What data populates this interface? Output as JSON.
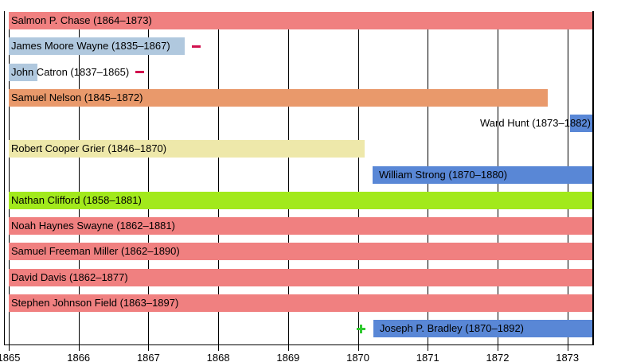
{
  "chart_data": {
    "type": "bar",
    "variant": "horizontal-timeline-gantt",
    "title": "",
    "xlabel": "",
    "ylabel": "",
    "grid": true,
    "legend": false,
    "x_axis": {
      "min": 1865,
      "max": 1873.37,
      "ticks": [
        1865,
        1866,
        1867,
        1868,
        1869,
        1870,
        1871,
        1872,
        1873
      ],
      "tick_labels": [
        "1865",
        "1866",
        "1867",
        "1868",
        "1869",
        "1870",
        "1871",
        "1872",
        "1873"
      ]
    },
    "rows": [
      {
        "label": "Salmon P. Chase (1864–1873)",
        "bar_start": 1865,
        "bar_end": 1873.37,
        "color": "#F08080",
        "label_pos": "inside-start"
      },
      {
        "label": "James Moore Wayne (1835–1867)",
        "bar_start": 1865,
        "bar_end": 1867.52,
        "color": "#B0C8DE",
        "label_pos": "inside-start",
        "marker": {
          "type": "dash",
          "x": 1867.69,
          "color": "#D1114E"
        }
      },
      {
        "label": "John Catron (1837–1865)",
        "bar_start": 1865,
        "bar_end": 1865.41,
        "color": "#B0C8DE",
        "label_pos": "inside-start",
        "marker": {
          "type": "dash",
          "x": 1866.87,
          "color": "#D1114E"
        }
      },
      {
        "label": "Samuel Nelson (1845–1872)",
        "bar_start": 1865,
        "bar_end": 1872.72,
        "color": "#E9996B",
        "label_pos": "inside-start"
      },
      {
        "label": "Ward Hunt (1873–1882)",
        "bar_start": 1873.04,
        "bar_end": 1873.37,
        "color": "#5987D6",
        "label_pos": "left-of-bar"
      },
      {
        "label": "Robert Cooper Grier (1846–1870)",
        "bar_start": 1865,
        "bar_end": 1870.1,
        "color": "#EEE8AA",
        "label_pos": "inside-start"
      },
      {
        "label": "William Strong (1870–1880)",
        "bar_start": 1870.21,
        "bar_end": 1873.37,
        "color": "#5987D6",
        "label_pos": "inside-start"
      },
      {
        "label": "Nathan Clifford (1858–1881)",
        "bar_start": 1865,
        "bar_end": 1873.37,
        "color": "#A2E91C",
        "label_pos": "inside-start"
      },
      {
        "label": "Noah Haynes Swayne (1862–1881)",
        "bar_start": 1865,
        "bar_end": 1873.37,
        "color": "#F08080",
        "label_pos": "inside-start"
      },
      {
        "label": "Samuel Freeman Miller (1862–1890)",
        "bar_start": 1865,
        "bar_end": 1873.37,
        "color": "#F08080",
        "label_pos": "inside-start"
      },
      {
        "label": "David Davis (1862–1877)",
        "bar_start": 1865,
        "bar_end": 1873.37,
        "color": "#F08080",
        "label_pos": "inside-start"
      },
      {
        "label": "Stephen Johnson Field (1863–1897)",
        "bar_start": 1865,
        "bar_end": 1873.37,
        "color": "#F08080",
        "label_pos": "inside-start"
      },
      {
        "label": "Joseph P. Bradley (1870–1892)",
        "bar_start": 1870.22,
        "bar_end": 1873.37,
        "color": "#5987D6",
        "label_pos": "inside-start",
        "marker": {
          "type": "plus",
          "x": 1870.05,
          "color": "#2FC92F"
        }
      }
    ],
    "marker_colors": {
      "dash": "#D1114E",
      "plus": "#2FC92F"
    },
    "axis_color": "#000000",
    "background_color": "#ffffff"
  }
}
